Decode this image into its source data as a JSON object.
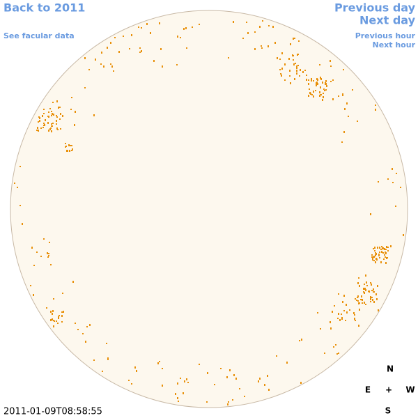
{
  "nav": {
    "back": "Back to 2011",
    "see": "See facular data",
    "prev_day": "Previous day",
    "next_day": "Next day",
    "prev_hour": "Previous hour",
    "next_hour": "Next hour"
  },
  "timestamp": "2011-01-09T08:58:55",
  "compass": {
    "n": "N",
    "e": "E",
    "plus": "+",
    "w": "W",
    "s": "S"
  }
}
